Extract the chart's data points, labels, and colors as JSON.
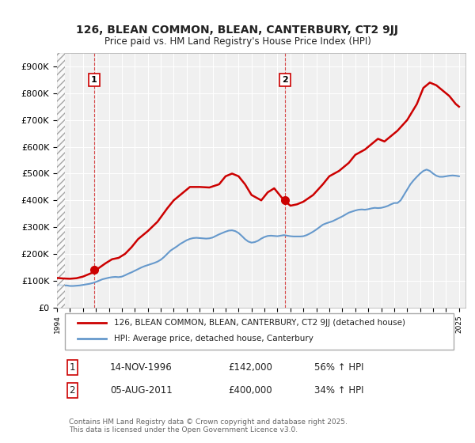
{
  "title": "126, BLEAN COMMON, BLEAN, CANTERBURY, CT2 9JJ",
  "subtitle": "Price paid vs. HM Land Registry's House Price Index (HPI)",
  "xlabel": "",
  "ylabel": "",
  "ylim": [
    0,
    950000
  ],
  "yticks": [
    0,
    100000,
    200000,
    300000,
    400000,
    500000,
    600000,
    700000,
    800000,
    900000
  ],
  "ytick_labels": [
    "£0",
    "£100K",
    "£200K",
    "£300K",
    "£400K",
    "£500K",
    "£600K",
    "£700K",
    "£800K",
    "£900K"
  ],
  "background_color": "#ffffff",
  "plot_background": "#f0f0f0",
  "grid_color": "#ffffff",
  "hpi_color": "#6699cc",
  "price_color": "#cc0000",
  "sale1_date": 1996.87,
  "sale1_price": 142000,
  "sale1_label": "1",
  "sale2_date": 2011.59,
  "sale2_price": 400000,
  "sale2_label": "2",
  "legend_line1": "126, BLEAN COMMON, BLEAN, CANTERBURY, CT2 9JJ (detached house)",
  "legend_line2": "HPI: Average price, detached house, Canterbury",
  "table_row1": [
    "1",
    "14-NOV-1996",
    "£142,000",
    "56% ↑ HPI"
  ],
  "table_row2": [
    "2",
    "05-AUG-2011",
    "£400,000",
    "34% ↑ HPI"
  ],
  "footer": "Contains HM Land Registry data © Crown copyright and database right 2025.\nThis data is licensed under the Open Government Licence v3.0.",
  "hpi_data": {
    "years": [
      1994.0,
      1994.25,
      1994.5,
      1994.75,
      1995.0,
      1995.25,
      1995.5,
      1995.75,
      1996.0,
      1996.25,
      1996.5,
      1996.75,
      1997.0,
      1997.25,
      1997.5,
      1997.75,
      1998.0,
      1998.25,
      1998.5,
      1998.75,
      1999.0,
      1999.25,
      1999.5,
      1999.75,
      2000.0,
      2000.25,
      2000.5,
      2000.75,
      2001.0,
      2001.25,
      2001.5,
      2001.75,
      2002.0,
      2002.25,
      2002.5,
      2002.75,
      2003.0,
      2003.25,
      2003.5,
      2003.75,
      2004.0,
      2004.25,
      2004.5,
      2004.75,
      2005.0,
      2005.25,
      2005.5,
      2005.75,
      2006.0,
      2006.25,
      2006.5,
      2006.75,
      2007.0,
      2007.25,
      2007.5,
      2007.75,
      2008.0,
      2008.25,
      2008.5,
      2008.75,
      2009.0,
      2009.25,
      2009.5,
      2009.75,
      2010.0,
      2010.25,
      2010.5,
      2010.75,
      2011.0,
      2011.25,
      2011.5,
      2011.75,
      2012.0,
      2012.25,
      2012.5,
      2012.75,
      2013.0,
      2013.25,
      2013.5,
      2013.75,
      2014.0,
      2014.25,
      2014.5,
      2014.75,
      2015.0,
      2015.25,
      2015.5,
      2015.75,
      2016.0,
      2016.25,
      2016.5,
      2016.75,
      2017.0,
      2017.25,
      2017.5,
      2017.75,
      2018.0,
      2018.25,
      2018.5,
      2018.75,
      2019.0,
      2019.25,
      2019.5,
      2019.75,
      2020.0,
      2020.25,
      2020.5,
      2020.75,
      2021.0,
      2021.25,
      2021.5,
      2021.75,
      2022.0,
      2022.25,
      2022.5,
      2022.75,
      2023.0,
      2023.25,
      2023.5,
      2023.75,
      2024.0,
      2024.25,
      2024.5,
      2024.75,
      2025.0
    ],
    "values": [
      84000,
      83000,
      82000,
      82000,
      80000,
      80000,
      81000,
      82000,
      84000,
      86000,
      88000,
      91000,
      95000,
      100000,
      105000,
      108000,
      111000,
      113000,
      114000,
      113000,
      115000,
      120000,
      126000,
      131000,
      137000,
      143000,
      149000,
      154000,
      158000,
      162000,
      166000,
      171000,
      178000,
      188000,
      200000,
      212000,
      220000,
      228000,
      237000,
      244000,
      251000,
      256000,
      259000,
      260000,
      259000,
      258000,
      257000,
      258000,
      261000,
      267000,
      273000,
      278000,
      283000,
      287000,
      288000,
      285000,
      278000,
      267000,
      255000,
      246000,
      242000,
      244000,
      249000,
      257000,
      263000,
      267000,
      268000,
      267000,
      266000,
      268000,
      270000,
      268000,
      266000,
      265000,
      265000,
      265000,
      266000,
      270000,
      276000,
      283000,
      291000,
      300000,
      309000,
      314000,
      318000,
      322000,
      328000,
      334000,
      340000,
      347000,
      354000,
      358000,
      362000,
      365000,
      366000,
      365000,
      367000,
      370000,
      372000,
      371000,
      372000,
      375000,
      379000,
      385000,
      390000,
      390000,
      400000,
      420000,
      440000,
      460000,
      475000,
      488000,
      500000,
      510000,
      515000,
      510000,
      500000,
      492000,
      488000,
      488000,
      490000,
      492000,
      493000,
      492000,
      490000
    ]
  },
  "price_data": {
    "years": [
      1994.0,
      1994.5,
      1995.0,
      1995.5,
      1996.0,
      1996.75,
      1997.25,
      1997.75,
      1998.25,
      1998.75,
      1999.25,
      1999.75,
      2000.25,
      2001.0,
      2001.75,
      2002.5,
      2003.0,
      2003.75,
      2004.25,
      2005.0,
      2005.75,
      2006.5,
      2007.0,
      2007.5,
      2008.0,
      2008.5,
      2009.0,
      2009.75,
      2010.25,
      2010.75,
      2011.5,
      2012.0,
      2012.5,
      2013.0,
      2013.75,
      2014.5,
      2015.0,
      2015.75,
      2016.5,
      2017.0,
      2017.75,
      2018.25,
      2018.75,
      2019.25,
      2019.75,
      2020.25,
      2021.0,
      2021.75,
      2022.25,
      2022.75,
      2023.25,
      2023.75,
      2024.25,
      2024.75,
      2025.0
    ],
    "values": [
      110000,
      108000,
      107000,
      109000,
      115000,
      130000,
      148000,
      165000,
      180000,
      185000,
      200000,
      225000,
      255000,
      285000,
      320000,
      370000,
      400000,
      430000,
      450000,
      450000,
      448000,
      460000,
      490000,
      500000,
      490000,
      460000,
      420000,
      400000,
      430000,
      445000,
      400000,
      380000,
      385000,
      395000,
      420000,
      460000,
      490000,
      510000,
      540000,
      570000,
      590000,
      610000,
      630000,
      620000,
      640000,
      660000,
      700000,
      760000,
      820000,
      840000,
      830000,
      810000,
      790000,
      760000,
      750000
    ]
  }
}
